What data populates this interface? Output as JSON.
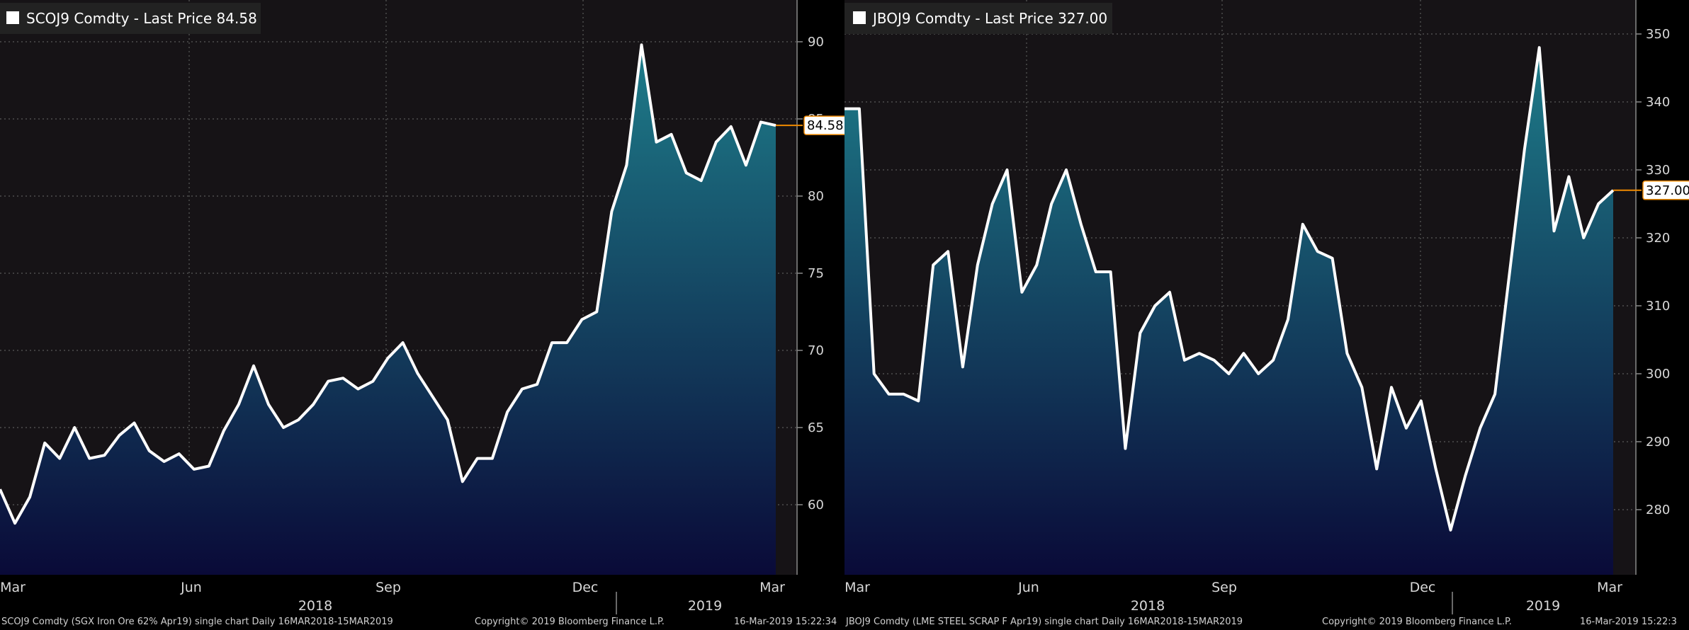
{
  "chart_data": [
    {
      "type": "area",
      "legend": "SCOJ9 Comdty - Last Price 84.58",
      "last_value": 84.58,
      "last_label": "84.58",
      "ylim": [
        55.5,
        92.5
      ],
      "y_ticks": [
        60,
        65,
        70,
        75,
        80,
        85,
        90
      ],
      "y_tick_labels": [
        "60",
        "65",
        "70",
        "75",
        "80",
        "85",
        "90"
      ],
      "x_months": [
        "Mar",
        "Jun",
        "Sep",
        "Dec",
        "Mar"
      ],
      "x_years": [
        "2018",
        "2019"
      ],
      "x": [
        "2018-03-16",
        "2018-03-23",
        "2018-03-30",
        "2018-04-06",
        "2018-04-13",
        "2018-04-20",
        "2018-04-27",
        "2018-05-04",
        "2018-05-11",
        "2018-05-18",
        "2018-05-25",
        "2018-06-01",
        "2018-06-08",
        "2018-06-15",
        "2018-06-22",
        "2018-06-29",
        "2018-07-06",
        "2018-07-13",
        "2018-07-20",
        "2018-07-27",
        "2018-08-03",
        "2018-08-10",
        "2018-08-17",
        "2018-08-24",
        "2018-08-31",
        "2018-09-07",
        "2018-09-14",
        "2018-09-21",
        "2018-09-28",
        "2018-10-05",
        "2018-10-12",
        "2018-10-19",
        "2018-10-26",
        "2018-11-02",
        "2018-11-09",
        "2018-11-16",
        "2018-11-23",
        "2018-11-30",
        "2018-12-07",
        "2018-12-14",
        "2018-12-21",
        "2018-12-28",
        "2019-01-04",
        "2019-01-11",
        "2019-01-18",
        "2019-01-25",
        "2019-02-01",
        "2019-02-08",
        "2019-02-15",
        "2019-02-22",
        "2019-03-01",
        "2019-03-08",
        "2019-03-15"
      ],
      "values": [
        61.0,
        58.8,
        60.5,
        64.0,
        63.0,
        65.0,
        63.0,
        63.2,
        64.5,
        65.3,
        63.5,
        62.8,
        63.3,
        62.3,
        62.5,
        64.8,
        66.5,
        69.0,
        66.5,
        65.0,
        65.5,
        66.5,
        68.0,
        68.2,
        67.5,
        68.0,
        69.5,
        70.5,
        68.5,
        67.0,
        65.5,
        61.5,
        63.0,
        63.0,
        66.0,
        67.5,
        67.8,
        70.5,
        70.5,
        72.0,
        72.5,
        79.0,
        82.0,
        89.8,
        83.5,
        84.0,
        81.5,
        81.0,
        83.5,
        84.5,
        82.0,
        84.8,
        84.58
      ],
      "footer_left": "SCOJ9 Comdty (SGX Iron Ore 62% Apr19) single chart Daily 16MAR2018-15MAR2019",
      "footer_center": "Copyright© 2019 Bloomberg Finance L.P.",
      "footer_right": "16-Mar-2019 15:22:34"
    },
    {
      "type": "area",
      "legend": "JBOJ9 Comdty - Last Price 327.00",
      "last_value": 327.0,
      "last_label": "327.00",
      "ylim": [
        270,
        354
      ],
      "y_ticks": [
        280,
        290,
        300,
        310,
        320,
        330,
        340,
        350
      ],
      "y_tick_labels": [
        "280",
        "290",
        "300",
        "310",
        "320",
        "330",
        "340",
        "350"
      ],
      "x_months": [
        "Mar",
        "Jun",
        "Sep",
        "Dec",
        "Mar"
      ],
      "x_years": [
        "2018",
        "2019"
      ],
      "x": [
        "2018-03-16",
        "2018-03-23",
        "2018-03-30",
        "2018-04-06",
        "2018-04-13",
        "2018-04-20",
        "2018-04-27",
        "2018-05-04",
        "2018-05-11",
        "2018-05-18",
        "2018-05-25",
        "2018-06-01",
        "2018-06-08",
        "2018-06-15",
        "2018-06-22",
        "2018-06-29",
        "2018-07-06",
        "2018-07-13",
        "2018-07-20",
        "2018-07-27",
        "2018-08-03",
        "2018-08-10",
        "2018-08-17",
        "2018-08-24",
        "2018-08-31",
        "2018-09-07",
        "2018-09-14",
        "2018-09-21",
        "2018-09-28",
        "2018-10-05",
        "2018-10-12",
        "2018-10-19",
        "2018-10-26",
        "2018-11-02",
        "2018-11-09",
        "2018-11-16",
        "2018-11-23",
        "2018-11-30",
        "2018-12-07",
        "2018-12-14",
        "2018-12-21",
        "2018-12-28",
        "2019-01-04",
        "2019-01-11",
        "2019-01-18",
        "2019-01-25",
        "2019-02-01",
        "2019-02-08",
        "2019-02-15",
        "2019-02-22",
        "2019-03-01",
        "2019-03-08",
        "2019-03-15"
      ],
      "values": [
        339,
        339,
        300,
        297,
        297,
        296,
        316,
        318,
        301,
        316,
        325,
        330,
        312,
        316,
        325,
        330,
        322,
        315,
        315,
        289,
        306,
        310,
        312,
        302,
        303,
        302,
        300,
        303,
        300,
        302,
        308,
        322,
        318,
        317,
        303,
        298,
        286,
        298,
        292,
        296,
        286,
        277,
        285,
        292,
        297,
        315,
        333,
        348,
        321,
        329,
        320,
        325,
        327
      ],
      "footer_left": "JBOJ9 Comdty (LME STEEL SCRAP F Apr19) single chart Daily 16MAR2018-15MAR2019",
      "footer_center": "Copyright© 2019 Bloomberg Finance L.P.",
      "footer_right": "16-Mar-2019 15:22:3"
    }
  ],
  "colors": {
    "background": "#000000",
    "plot_background": "#161316",
    "grid": "#5a5a5a",
    "line": "#ffffff",
    "area_top": "#1e7d8a",
    "area_bottom": "#0a0a38",
    "last_price_marker": "#f08a00"
  }
}
